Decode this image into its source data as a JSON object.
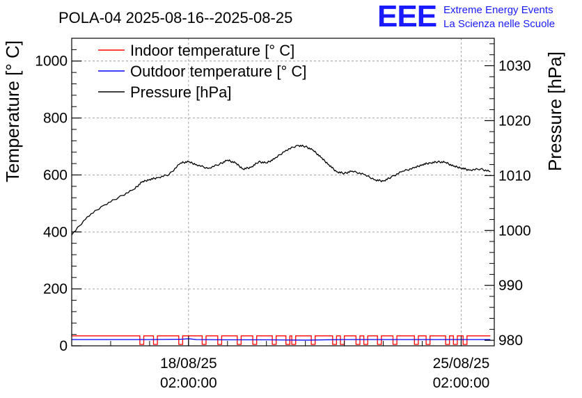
{
  "chart_data": {
    "type": "line",
    "title": "POLA-04 2025-08-16--2025-08-25",
    "ylabel": "Temperature [° C]",
    "ylabel_right": "Pressure [hPa]",
    "ylim": [
      0,
      1080
    ],
    "ylim_right": [
      979,
      1035
    ],
    "y_ticks": [
      0,
      200,
      400,
      600,
      800,
      1000
    ],
    "y_right_ticks": [
      980,
      990,
      1000,
      1010,
      1020,
      1030
    ],
    "x_ticks": [
      {
        "x": 1.0,
        "label_date": "18/08/25",
        "label_time": "02:00:00"
      },
      {
        "x": 8.0,
        "label_date": "25/08/25",
        "label_time": "02:00:00"
      }
    ],
    "xlim": [
      -2.0,
      8.85
    ],
    "grid": true,
    "legend_position": "top-left",
    "series": [
      {
        "name": "Indoor temperature [° C]",
        "color": "#ff0000",
        "axis": "left",
        "base_value": 35,
        "low_value": 5,
        "dip_times": [
          -0.2,
          0.15,
          0.8,
          1.4,
          1.8,
          2.3,
          2.7,
          3.2,
          3.55,
          3.7,
          4.2,
          4.75,
          4.95,
          5.35,
          5.55,
          5.9,
          6.3,
          6.85,
          7.15,
          7.65,
          7.85,
          8.1
        ]
      },
      {
        "name": "Outdoor temperature [° C]",
        "color": "#0000ff",
        "axis": "left",
        "x": [
          -2.0,
          0.0,
          0.8,
          1.0,
          1.2,
          2.0,
          3.0,
          4.0,
          5.0,
          6.0,
          7.0,
          8.0,
          8.75
        ],
        "values": [
          22,
          22,
          23,
          25,
          22,
          21,
          21,
          20,
          22,
          22,
          22,
          22,
          22
        ]
      },
      {
        "name": "Pressure [hPa]",
        "color": "#000000",
        "axis": "right",
        "x": [
          -2.0,
          -1.6,
          -1.2,
          -0.8,
          -0.4,
          -0.2,
          0.0,
          0.2,
          0.5,
          0.8,
          1.0,
          1.2,
          1.5,
          1.8,
          2.0,
          2.2,
          2.4,
          2.6,
          2.8,
          3.0,
          3.2,
          3.5,
          3.8,
          4.0,
          4.2,
          4.4,
          4.6,
          4.8,
          5.0,
          5.2,
          5.5,
          5.8,
          6.0,
          6.2,
          6.5,
          6.8,
          7.0,
          7.2,
          7.4,
          7.6,
          7.8,
          8.0,
          8.2,
          8.5,
          8.75
        ],
        "values": [
          999.2,
          1002.5,
          1004.5,
          1006.0,
          1007.5,
          1008.8,
          1009.3,
          1009.6,
          1010.2,
          1012.3,
          1012.5,
          1012.0,
          1011.3,
          1012.1,
          1012.8,
          1012.3,
          1011.2,
          1011.5,
          1012.5,
          1012.3,
          1013.0,
          1014.6,
          1015.5,
          1015.3,
          1014.6,
          1013.3,
          1012.0,
          1010.7,
          1010.4,
          1010.8,
          1010.2,
          1009.2,
          1009.0,
          1009.7,
          1010.8,
          1011.4,
          1012.0,
          1012.3,
          1012.5,
          1012.4,
          1011.7,
          1011.4,
          1011.0,
          1011.2,
          1010.7
        ]
      }
    ]
  },
  "logo": {
    "mark": "EEE",
    "line1": "Extreme Energy Events",
    "line2": "La Scienza nelle Scuole"
  }
}
